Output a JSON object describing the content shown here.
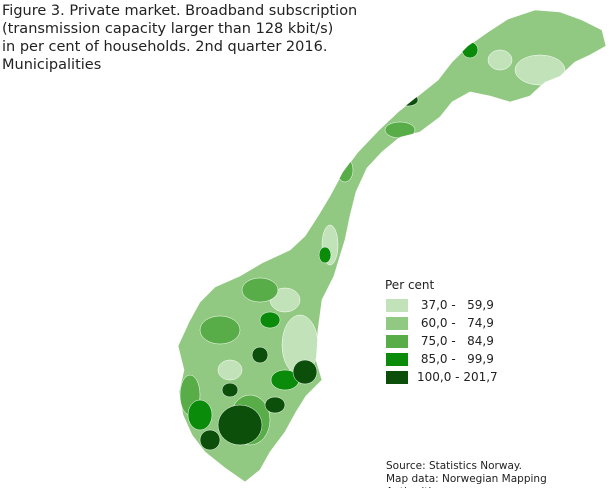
{
  "title_lines": [
    "Figure 3. Private market. Broadband subscription",
    "(transmission capacity larger than 128 kbit/s)",
    "in per cent of households. 2nd quarter 2016.",
    "Municipalities"
  ],
  "legend": {
    "title": "Per cent",
    "items": [
      {
        "label": " 37,0 -   59,9",
        "color": "#c2e2b9"
      },
      {
        "label": " 60,0 -   74,9",
        "color": "#92c982"
      },
      {
        "label": " 75,0 -   84,9",
        "color": "#58ad48"
      },
      {
        "label": " 85,0 -   99,9",
        "color": "#0a8b0a"
      },
      {
        "label": "100,0 - 201,7",
        "color": "#0b4f0b"
      }
    ]
  },
  "source": [
    "Source: Statistics Norway.",
    "Map data: Norwegian Mapping Authorities."
  ]
}
